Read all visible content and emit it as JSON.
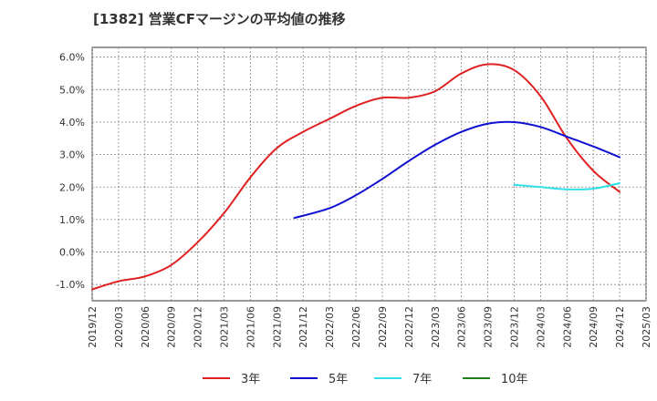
{
  "chart_data": {
    "type": "line",
    "title": "[1382]  営業CFマージンの平均値の推移",
    "xlabel": "",
    "ylabel": "",
    "ylim": [
      -1.5,
      6.3
    ],
    "y_ticks": [
      "-1.0%",
      "0.0%",
      "1.0%",
      "2.0%",
      "3.0%",
      "4.0%",
      "5.0%",
      "6.0%"
    ],
    "x_ticks": [
      "2019/12",
      "2020/03",
      "2020/06",
      "2020/09",
      "2020/12",
      "2021/03",
      "2021/06",
      "2021/09",
      "2021/12",
      "2022/03",
      "2022/06",
      "2022/09",
      "2022/12",
      "2023/03",
      "2023/06",
      "2023/09",
      "2023/12",
      "2024/03",
      "2024/06",
      "2024/09",
      "2024/12",
      "2025/03"
    ],
    "grid": true,
    "legend_position": "bottom",
    "series": [
      {
        "name": "3年",
        "color": "#e02020",
        "points": [
          [
            "2019/12",
            -1.15
          ],
          [
            "2020/03",
            -0.9
          ],
          [
            "2020/06",
            -0.75
          ],
          [
            "2020/09",
            -0.4
          ],
          [
            "2020/12",
            0.3
          ],
          [
            "2021/03",
            1.2
          ],
          [
            "2021/06",
            2.3
          ],
          [
            "2021/09",
            3.2
          ],
          [
            "2021/12",
            3.7
          ],
          [
            "2022/03",
            4.1
          ],
          [
            "2022/06",
            4.5
          ],
          [
            "2022/09",
            4.75
          ],
          [
            "2022/12",
            4.75
          ],
          [
            "2023/03",
            4.95
          ],
          [
            "2023/06",
            5.5
          ],
          [
            "2023/09",
            5.78
          ],
          [
            "2023/12",
            5.6
          ],
          [
            "2024/03",
            4.8
          ],
          [
            "2024/06",
            3.5
          ],
          [
            "2024/09",
            2.5
          ],
          [
            "2024/12",
            1.85
          ]
        ]
      },
      {
        "name": "5年",
        "color": "#1010d0",
        "points": [
          [
            "2021/11",
            1.05
          ],
          [
            "2022/03",
            1.35
          ],
          [
            "2022/06",
            1.75
          ],
          [
            "2022/09",
            2.25
          ],
          [
            "2022/12",
            2.8
          ],
          [
            "2023/03",
            3.3
          ],
          [
            "2023/06",
            3.7
          ],
          [
            "2023/09",
            3.95
          ],
          [
            "2023/12",
            4.0
          ],
          [
            "2024/03",
            3.85
          ],
          [
            "2024/06",
            3.55
          ],
          [
            "2024/09",
            3.25
          ],
          [
            "2024/12",
            2.92
          ]
        ]
      },
      {
        "name": "7年",
        "color": "#30e0e8",
        "points": [
          [
            "2023/12",
            2.07
          ],
          [
            "2024/03",
            2.0
          ],
          [
            "2024/06",
            1.93
          ],
          [
            "2024/09",
            1.95
          ],
          [
            "2024/12",
            2.12
          ]
        ]
      },
      {
        "name": "10年",
        "color": "#208020",
        "points": []
      }
    ]
  }
}
